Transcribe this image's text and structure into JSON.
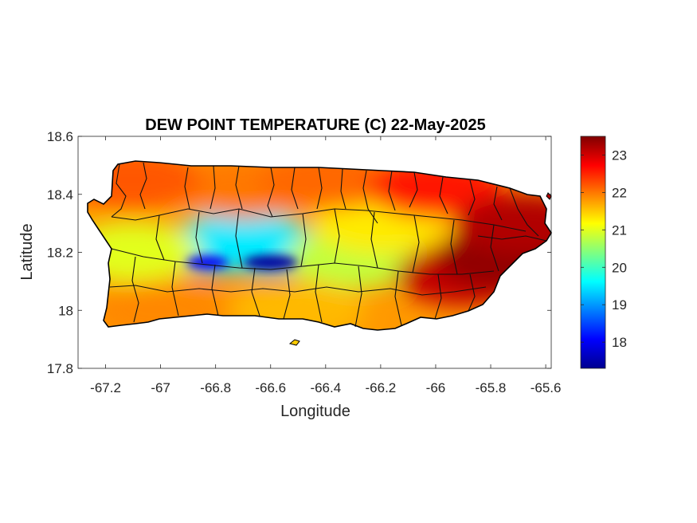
{
  "figure": {
    "title": "DEW POINT TEMPERATURE (C) 22-May-2025"
  },
  "chart_data": {
    "type": "heatmap",
    "title": "DEW POINT TEMPERATURE (C) 22-May-2025",
    "xlabel": "Longitude",
    "ylabel": "Latitude",
    "xlim": [
      -67.3,
      -65.58
    ],
    "ylim": [
      17.8,
      18.6
    ],
    "xticks": [
      -67.2,
      -67,
      -66.8,
      -66.6,
      -66.4,
      -66.2,
      -66,
      -65.8,
      -65.6
    ],
    "xtick_labels": [
      "-67.2",
      "-67",
      "-66.8",
      "-66.6",
      "-66.4",
      "-66.2",
      "-66",
      "-65.8",
      "-65.6"
    ],
    "yticks": [
      17.8,
      18,
      18.2,
      18.4,
      18.6
    ],
    "ytick_labels": [
      "17.8",
      "18",
      "18.2",
      "18.4",
      "18.6"
    ],
    "colormap": "jet",
    "colorbar": {
      "limits": [
        17.3,
        23.5
      ],
      "ticks": [
        18,
        19,
        20,
        21,
        22,
        23
      ],
      "tick_labels": [
        "18",
        "19",
        "20",
        "21",
        "22",
        "23"
      ],
      "colors": [
        "#00008f",
        "#0000ff",
        "#0080ff",
        "#00ffff",
        "#80ff80",
        "#ffff00",
        "#ff8000",
        "#ff0000",
        "#800000"
      ]
    },
    "field_regions": [
      {
        "lon": -66.6,
        "lat": 18.165,
        "value": 17.5
      },
      {
        "lon": -66.8,
        "lat": 18.17,
        "value": 18.2
      },
      {
        "lon": -66.45,
        "lat": 18.17,
        "value": 18.8
      },
      {
        "lon": -66.7,
        "lat": 18.24,
        "value": 19.5
      },
      {
        "lon": -66.3,
        "lat": 18.18,
        "value": 20.8
      },
      {
        "lon": -67.1,
        "lat": 18.2,
        "value": 21.0
      },
      {
        "lon": -66.2,
        "lat": 18.3,
        "value": 21.3
      },
      {
        "lon": -66.7,
        "lat": 18.42,
        "value": 22.0
      },
      {
        "lon": -67.1,
        "lat": 18.45,
        "value": 22.2
      },
      {
        "lon": -66.4,
        "lat": 18.45,
        "value": 22.1
      },
      {
        "lon": -66.5,
        "lat": 18.0,
        "value": 21.6
      },
      {
        "lon": -67.0,
        "lat": 18.0,
        "value": 21.9
      },
      {
        "lon": -66.0,
        "lat": 18.42,
        "value": 22.6
      },
      {
        "lon": -65.9,
        "lat": 18.12,
        "value": 23.1
      },
      {
        "lon": -65.75,
        "lat": 18.18,
        "value": 23.4
      },
      {
        "lon": -65.68,
        "lat": 18.3,
        "value": 23.2
      }
    ],
    "grid": false
  }
}
